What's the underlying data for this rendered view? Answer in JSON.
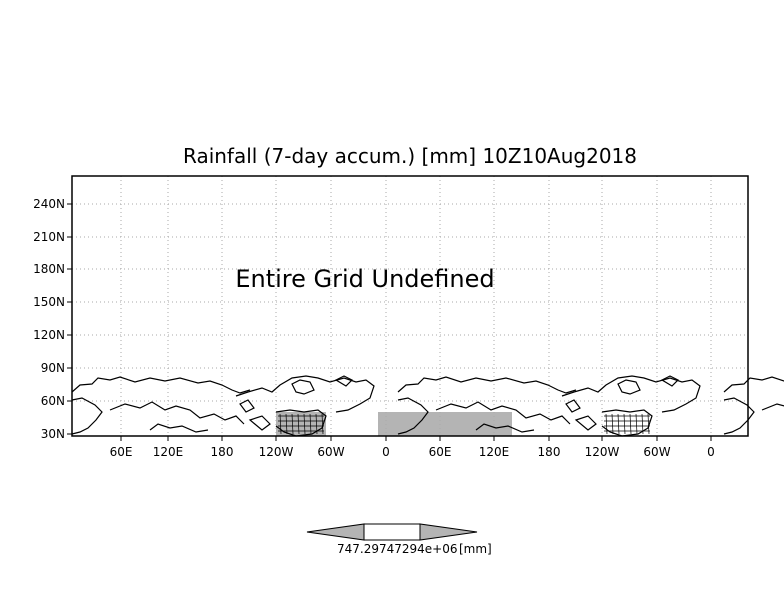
{
  "map": {
    "title": "Rainfall (7-day accum.) [mm] 10Z10Aug2018",
    "annotation": "Entire Grid Undefined",
    "lat_labels": [
      "240N",
      "210N",
      "180N",
      "150N",
      "120N",
      "90N",
      "60N",
      "30N"
    ],
    "lon_labels": [
      "60E",
      "120E",
      "180",
      "120W",
      "60W",
      "0",
      "60E",
      "120E",
      "180",
      "120W",
      "60W",
      "0"
    ],
    "colors": {
      "land_outline": "#000000",
      "shaded_region": "#b4b4b4",
      "grid": "#aaaaaa"
    }
  },
  "colorbar": {
    "label": "747.29747294e+06",
    "unit": "[mm]",
    "left_triangle_color": "#b4b4b4",
    "center_color": "#ffffff",
    "right_triangle_color": "#b4b4b4"
  }
}
